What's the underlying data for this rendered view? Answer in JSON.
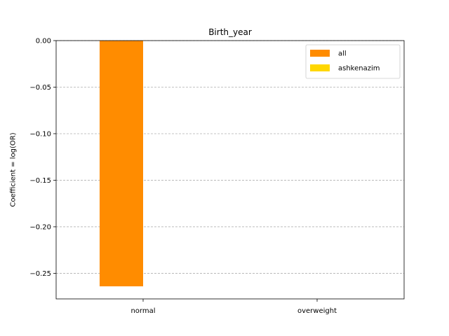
{
  "chart_data": {
    "type": "bar",
    "title": "Birth_year",
    "xlabel": "",
    "ylabel": "Coefficient = log(OR)",
    "categories": [
      "normal",
      "overweight"
    ],
    "series": [
      {
        "name": "all",
        "color": "#ff8c00",
        "values": [
          -0.264,
          null
        ]
      },
      {
        "name": "ashkenazim",
        "color": "#ffd700",
        "values": [
          null,
          null
        ]
      }
    ],
    "ylim": [
      -0.2775,
      0.0
    ],
    "yticks": [
      0.0,
      -0.05,
      -0.1,
      -0.15,
      -0.2,
      -0.25
    ],
    "ytick_labels": [
      "0.00",
      "−0.05",
      "−0.10",
      "−0.15",
      "−0.20",
      "−0.25"
    ],
    "grid": "y-dashed",
    "legend_position": "top-right"
  }
}
